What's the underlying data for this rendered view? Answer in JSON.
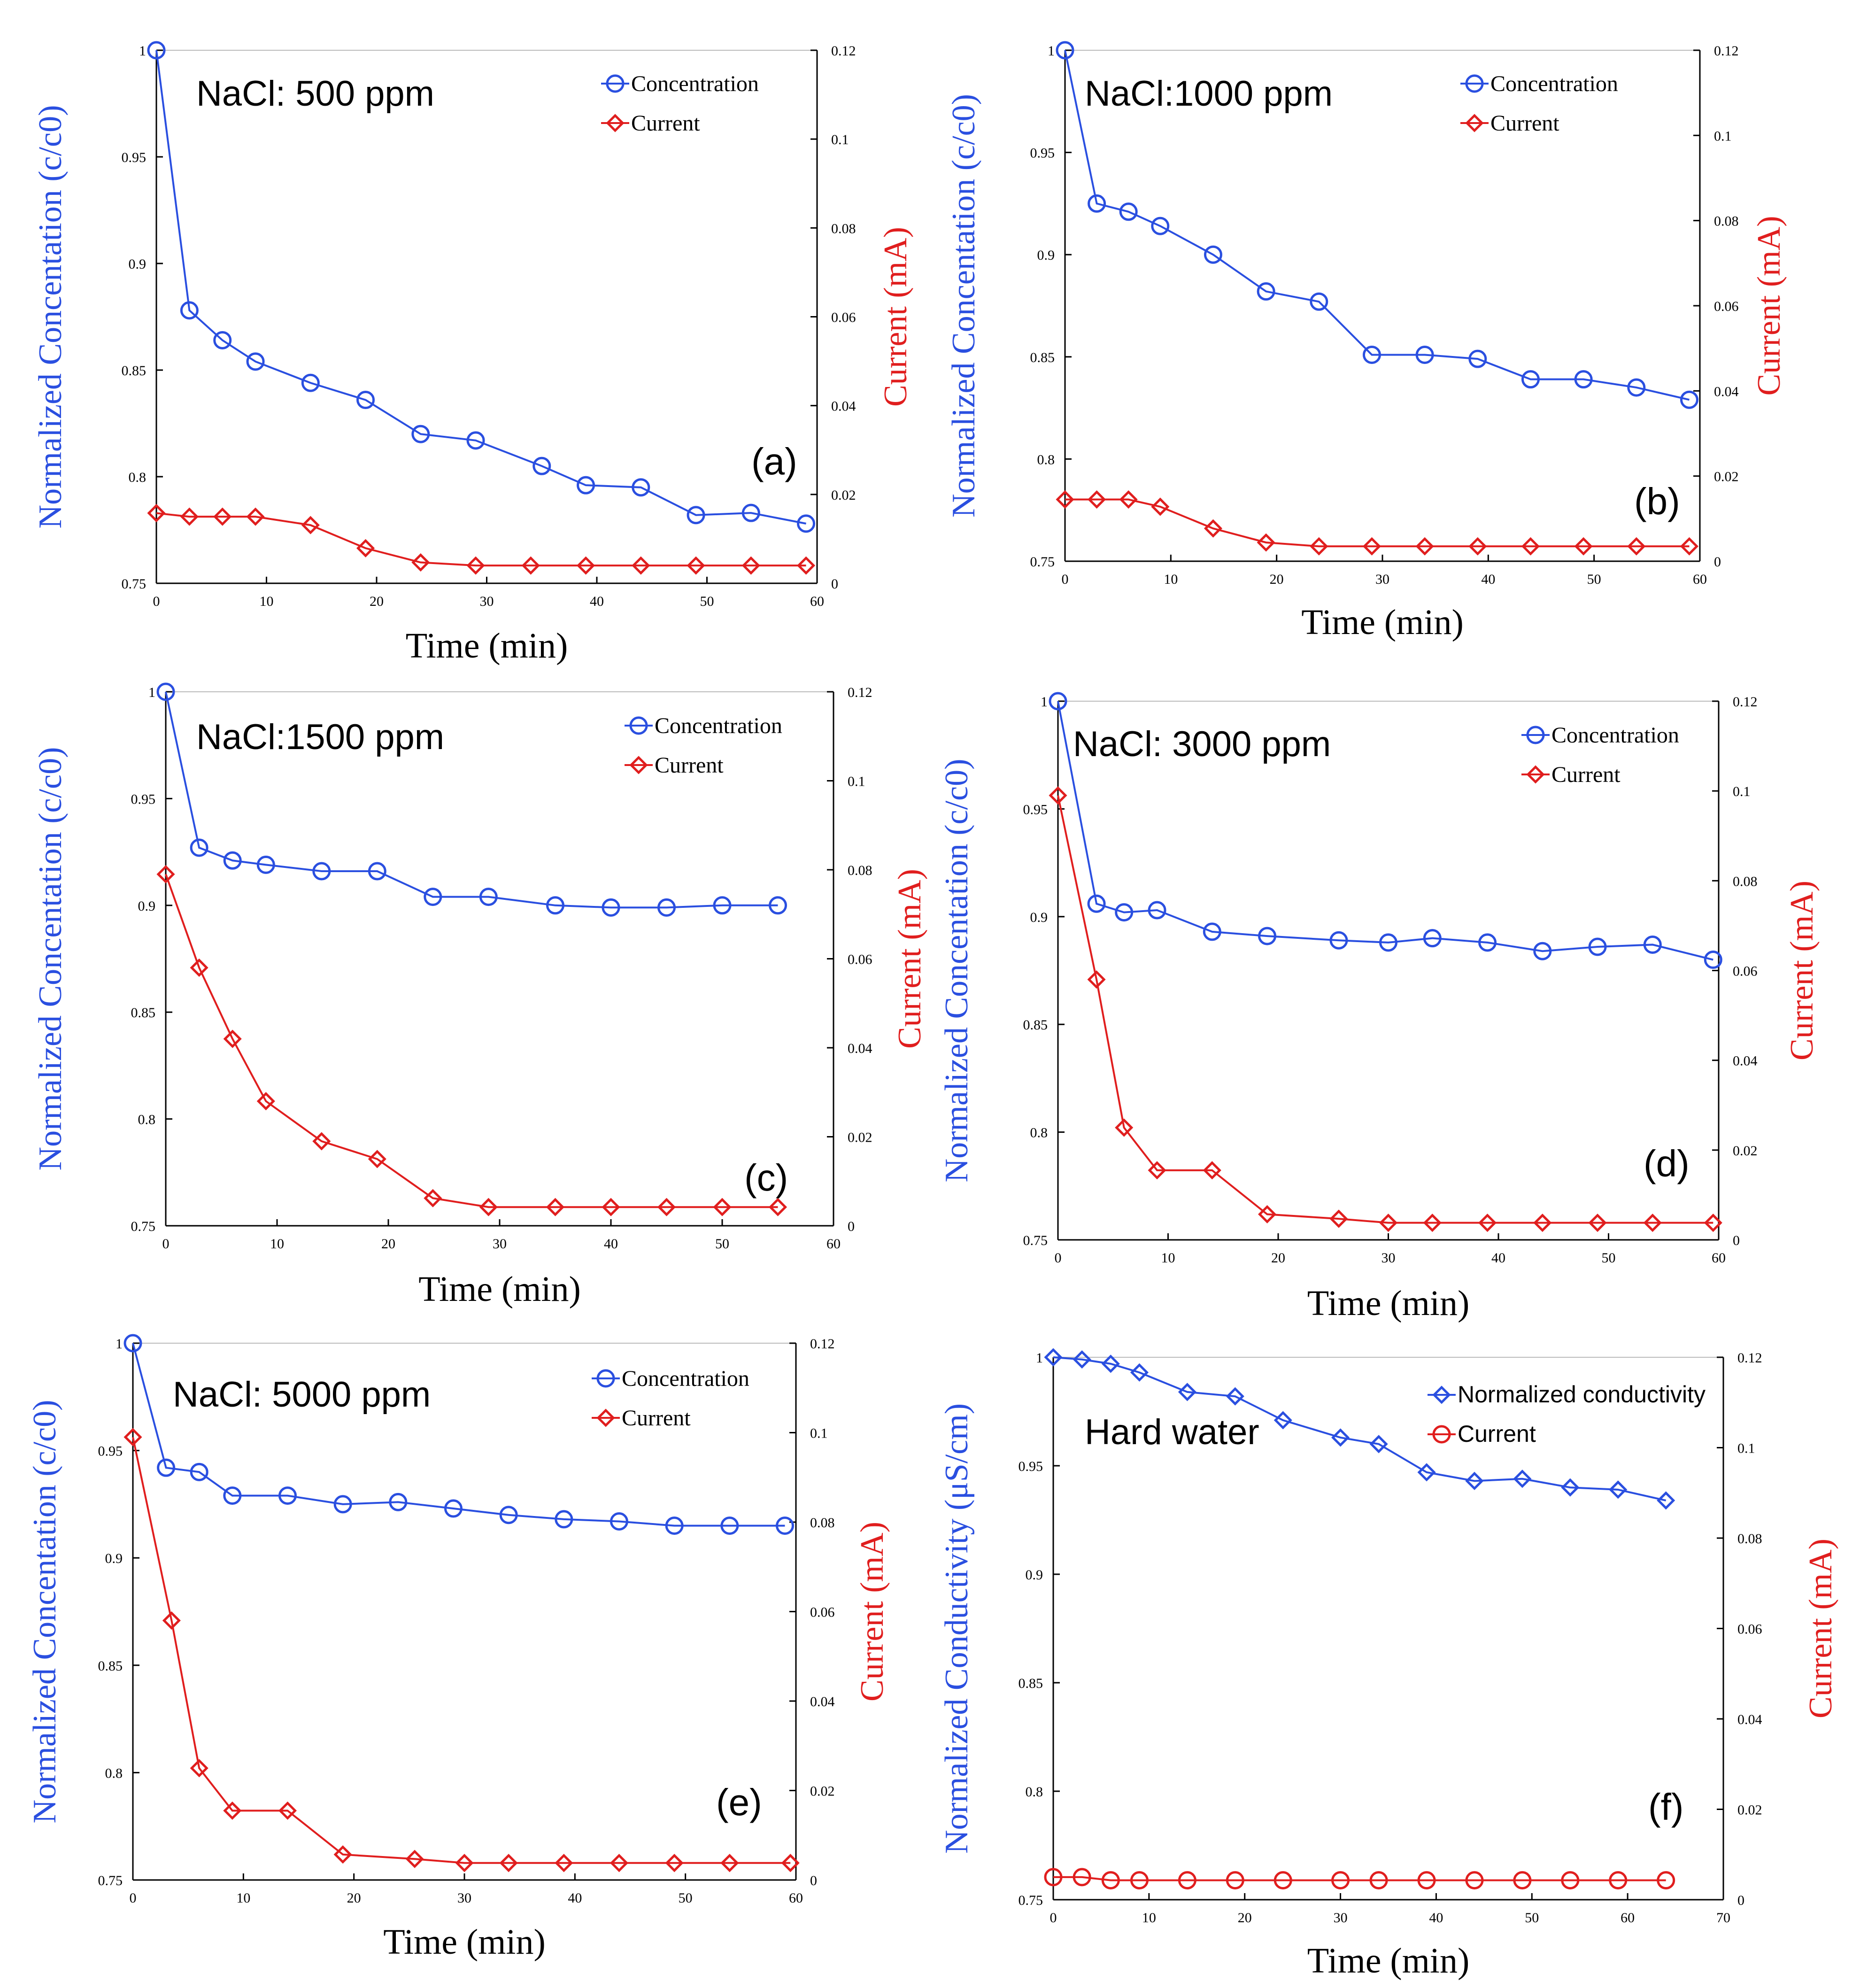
{
  "colors": {
    "concentration": "#2a4fe0",
    "current": "#e01e1e",
    "left_title": "#2a4fe0",
    "right_title": "#e01e1e",
    "axis": "#000000"
  },
  "chart_data": [
    {
      "id": "a",
      "type": "line",
      "title": "NaCl: 500 ppm",
      "panel_label": "(a)",
      "xlabel": "Time (min)",
      "ylabel": "Normalized Concentation (c/c0)",
      "y2label": "Current (mA)",
      "xlim": [
        0,
        60
      ],
      "ylim": [
        0.75,
        1
      ],
      "y2lim": [
        0,
        0.12
      ],
      "xticks": [
        0,
        10,
        20,
        30,
        40,
        50,
        60
      ],
      "yticks": [
        0.75,
        0.8,
        0.85,
        0.9,
        0.95,
        1
      ],
      "y2ticks": [
        0,
        0.02,
        0.04,
        0.06,
        0.08,
        0.1,
        0.12
      ],
      "legend": [
        "Concentration",
        "Current"
      ],
      "series": [
        {
          "name": "Concentration",
          "axis": "left",
          "marker": "circle",
          "x": [
            0,
            3,
            6,
            9,
            14,
            19,
            24,
            29,
            35,
            39,
            44,
            49,
            54,
            59
          ],
          "y": [
            1.0,
            0.878,
            0.864,
            0.854,
            0.844,
            0.836,
            0.82,
            0.817,
            0.805,
            0.796,
            0.795,
            0.782,
            0.783,
            0.778
          ]
        },
        {
          "name": "Current",
          "axis": "right",
          "marker": "diamond",
          "x": [
            0,
            3,
            6,
            9,
            14,
            19,
            24,
            29,
            34,
            39,
            44,
            49,
            54,
            59
          ],
          "y": [
            0.0158,
            0.015,
            0.015,
            0.015,
            0.0131,
            0.0079,
            0.0047,
            0.004,
            0.004,
            0.004,
            0.004,
            0.004,
            0.004,
            0.004
          ]
        }
      ]
    },
    {
      "id": "b",
      "type": "line",
      "title": "NaCl:1000 ppm",
      "panel_label": "(b)",
      "xlabel": "Time (min)",
      "ylabel": "Normalized Concentation (c/c0)",
      "y2label": "Current (mA)",
      "xlim": [
        0,
        60
      ],
      "ylim": [
        0.75,
        1
      ],
      "y2lim": [
        0,
        0.12
      ],
      "xticks": [
        0,
        10,
        20,
        30,
        40,
        50,
        60
      ],
      "yticks": [
        0.75,
        0.8,
        0.85,
        0.9,
        0.95,
        1
      ],
      "y2ticks": [
        0,
        0.02,
        0.04,
        0.06,
        0.08,
        0.1,
        0.12
      ],
      "legend": [
        "Concentration",
        "Current"
      ],
      "series": [
        {
          "name": "Concentration",
          "axis": "left",
          "marker": "circle",
          "x": [
            0,
            3,
            6,
            9,
            14,
            19,
            24,
            29,
            34,
            39,
            44,
            49,
            54,
            59
          ],
          "y": [
            1.0,
            0.925,
            0.921,
            0.914,
            0.9,
            0.882,
            0.877,
            0.851,
            0.851,
            0.849,
            0.839,
            0.839,
            0.835,
            0.829
          ]
        },
        {
          "name": "Current",
          "axis": "right",
          "marker": "diamond",
          "x": [
            0,
            3,
            6,
            9,
            14,
            19,
            24,
            29,
            34,
            39,
            44,
            49,
            54,
            59
          ],
          "y": [
            0.0145,
            0.0145,
            0.0145,
            0.0128,
            0.0077,
            0.0044,
            0.0035,
            0.0035,
            0.0035,
            0.0035,
            0.0035,
            0.0035,
            0.0035,
            0.0035
          ]
        }
      ]
    },
    {
      "id": "c",
      "type": "line",
      "title": "NaCl:1500 ppm",
      "panel_label": "(c)",
      "xlabel": "Time (min)",
      "ylabel": "Normalized Concentation (c/c0)",
      "y2label": "Current (mA)",
      "xlim": [
        0,
        60
      ],
      "ylim": [
        0.75,
        1
      ],
      "y2lim": [
        0,
        0.12
      ],
      "xticks": [
        0,
        10,
        20,
        30,
        40,
        50,
        60
      ],
      "yticks": [
        0.75,
        0.8,
        0.85,
        0.9,
        0.95,
        1
      ],
      "y2ticks": [
        0,
        0.02,
        0.04,
        0.06,
        0.08,
        0.1,
        0.12
      ],
      "legend": [
        "Concentration",
        "Current"
      ],
      "series": [
        {
          "name": "Concentration",
          "axis": "left",
          "marker": "circle",
          "x": [
            0,
            3,
            6,
            9,
            14,
            19,
            24,
            29,
            35,
            40,
            45,
            50,
            55
          ],
          "y": [
            1.0,
            0.927,
            0.921,
            0.919,
            0.916,
            0.916,
            0.904,
            0.904,
            0.9,
            0.899,
            0.899,
            0.9,
            0.9
          ]
        },
        {
          "name": "Current",
          "axis": "right",
          "marker": "diamond",
          "x": [
            0,
            3,
            6,
            9,
            14,
            19,
            24,
            29,
            35,
            40,
            45,
            50,
            55
          ],
          "y": [
            0.079,
            0.058,
            0.042,
            0.028,
            0.019,
            0.015,
            0.0062,
            0.0042,
            0.0042,
            0.0042,
            0.0042,
            0.0042,
            0.0042
          ]
        }
      ]
    },
    {
      "id": "d",
      "type": "line",
      "title": "NaCl: 3000 ppm",
      "panel_label": "(d)",
      "xlabel": "Time (min)",
      "ylabel": "Normalized Concentation (c/c0)",
      "y2label": "Current (mA)",
      "xlim": [
        0,
        60
      ],
      "ylim": [
        0.75,
        1
      ],
      "y2lim": [
        0,
        0.12
      ],
      "xticks": [
        0,
        10,
        20,
        30,
        40,
        50,
        60
      ],
      "yticks": [
        0.75,
        0.8,
        0.85,
        0.9,
        0.95,
        1
      ],
      "y2ticks": [
        0,
        0.02,
        0.04,
        0.06,
        0.08,
        0.1,
        0.12
      ],
      "legend": [
        "Concentration",
        "Current"
      ],
      "series": [
        {
          "name": "Concentration",
          "axis": "left",
          "marker": "circle",
          "x": [
            0,
            3.5,
            6,
            9,
            14,
            19,
            25.5,
            30,
            34,
            39,
            44,
            49,
            54,
            59.5
          ],
          "y": [
            1.0,
            0.906,
            0.902,
            0.903,
            0.893,
            0.891,
            0.889,
            0.888,
            0.89,
            0.888,
            0.884,
            0.886,
            0.887,
            0.88
          ]
        },
        {
          "name": "Current",
          "axis": "right",
          "marker": "diamond",
          "x": [
            0,
            3.5,
            6,
            9,
            14,
            19,
            25.5,
            30,
            34,
            39,
            44,
            49,
            54,
            59.5
          ],
          "y": [
            0.099,
            0.058,
            0.025,
            0.0155,
            0.0155,
            0.0057,
            0.0047,
            0.0038,
            0.0038,
            0.0038,
            0.0038,
            0.0038,
            0.0038,
            0.0038
          ]
        }
      ]
    },
    {
      "id": "e",
      "type": "line",
      "title": "NaCl: 5000 ppm",
      "panel_label": "(e)",
      "xlabel": "Time (min)",
      "ylabel": "Normalized Concentation (c/c0)",
      "y2label": "Current (mA)",
      "xlim": [
        0,
        60
      ],
      "ylim": [
        0.75,
        1
      ],
      "y2lim": [
        0,
        0.12
      ],
      "xticks": [
        0,
        10,
        20,
        30,
        40,
        50,
        60
      ],
      "yticks": [
        0.75,
        0.8,
        0.85,
        0.9,
        0.95,
        1
      ],
      "y2ticks": [
        0,
        0.02,
        0.04,
        0.06,
        0.08,
        0.1,
        0.12
      ],
      "legend": [
        "Concentration",
        "Current"
      ],
      "series": [
        {
          "name": "Concentration",
          "axis": "left",
          "marker": "circle",
          "x": [
            0,
            3,
            6,
            9,
            14,
            19,
            24,
            29,
            34,
            39,
            44,
            49,
            54,
            59
          ],
          "y": [
            1.0,
            0.942,
            0.94,
            0.929,
            0.929,
            0.925,
            0.926,
            0.923,
            0.92,
            0.918,
            0.917,
            0.915,
            0.915,
            0.915
          ]
        },
        {
          "name": "Current",
          "axis": "right",
          "marker": "diamond",
          "x": [
            0,
            3.5,
            6,
            9,
            14,
            19,
            25.5,
            30,
            34,
            39,
            44,
            49,
            54,
            59.5
          ],
          "y": [
            0.099,
            0.058,
            0.025,
            0.0155,
            0.0155,
            0.0057,
            0.0047,
            0.0038,
            0.0038,
            0.0038,
            0.0038,
            0.0038,
            0.0038,
            0.0038
          ]
        }
      ]
    },
    {
      "id": "f",
      "type": "line",
      "title": "Hard water",
      "panel_label": "(f)",
      "xlabel": "Time (min)",
      "ylabel": "Normalized Conductivity (μS/cm)",
      "y2label": "Current (mA)",
      "xlim": [
        0,
        70
      ],
      "ylim": [
        0.75,
        1
      ],
      "y2lim": [
        0,
        0.12
      ],
      "xticks": [
        0,
        10,
        20,
        30,
        40,
        50,
        60,
        70
      ],
      "yticks": [
        0.75,
        0.8,
        0.85,
        0.9,
        0.95,
        1
      ],
      "y2ticks": [
        0,
        0.02,
        0.04,
        0.06,
        0.08,
        0.1,
        0.12
      ],
      "legend": [
        "Normalized conductivity",
        "Current"
      ],
      "series": [
        {
          "name": "Normalized conductivity",
          "axis": "left",
          "marker": "diamond",
          "x": [
            0,
            3,
            6,
            9,
            14,
            19,
            24,
            30,
            34,
            39,
            44,
            49,
            54,
            59,
            64
          ],
          "y": [
            1.0,
            0.999,
            0.997,
            0.993,
            0.984,
            0.982,
            0.971,
            0.963,
            0.96,
            0.947,
            0.943,
            0.944,
            0.94,
            0.939,
            0.934
          ]
        },
        {
          "name": "Current",
          "axis": "right",
          "marker": "circle",
          "x": [
            0,
            3,
            6,
            9,
            14,
            19,
            24,
            30,
            34,
            39,
            44,
            49,
            54,
            59,
            64
          ],
          "y": [
            0.005,
            0.005,
            0.0043,
            0.0043,
            0.0043,
            0.0043,
            0.0043,
            0.0043,
            0.0043,
            0.0043,
            0.0043,
            0.0043,
            0.0043,
            0.0043,
            0.0043
          ]
        }
      ]
    }
  ]
}
